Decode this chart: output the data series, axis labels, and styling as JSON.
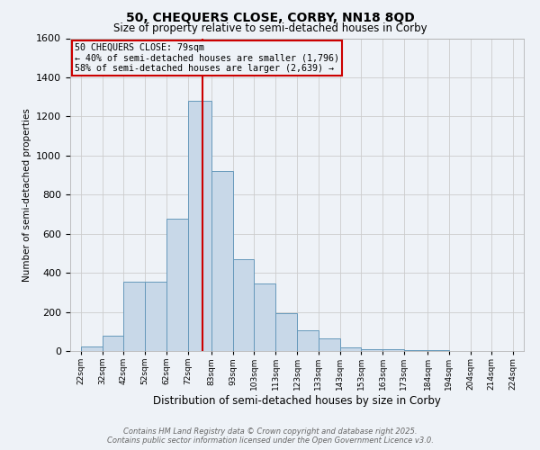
{
  "title_line1": "50, CHEQUERS CLOSE, CORBY, NN18 8QD",
  "title_line2": "Size of property relative to semi-detached houses in Corby",
  "xlabel": "Distribution of semi-detached houses by size in Corby",
  "ylabel": "Number of semi-detached properties",
  "bin_labels": [
    "22sqm",
    "32sqm",
    "42sqm",
    "52sqm",
    "62sqm",
    "72sqm",
    "83sqm",
    "93sqm",
    "103sqm",
    "113sqm",
    "123sqm",
    "133sqm",
    "143sqm",
    "153sqm",
    "163sqm",
    "173sqm",
    "184sqm",
    "194sqm",
    "204sqm",
    "214sqm",
    "224sqm"
  ],
  "bar_centers": [
    27,
    37,
    47,
    57,
    67,
    77.5,
    88,
    98,
    108,
    118,
    128,
    138,
    148,
    158,
    168,
    178.5,
    189,
    199,
    209,
    219
  ],
  "bar_widths": [
    10,
    10,
    10,
    10,
    10,
    11,
    10,
    10,
    10,
    10,
    10,
    10,
    10,
    10,
    10,
    11,
    10,
    10,
    10,
    10
  ],
  "bar_heights": [
    25,
    80,
    355,
    355,
    675,
    1280,
    920,
    470,
    345,
    195,
    105,
    65,
    20,
    10,
    10,
    5,
    3,
    0,
    0,
    0
  ],
  "bar_color": "#c8d8e8",
  "bar_edge_color": "#6699bb",
  "property_size": 79,
  "red_line_color": "#cc0000",
  "annotation_text": "50 CHEQUERS CLOSE: 79sqm\n← 40% of semi-detached houses are smaller (1,796)\n58% of semi-detached houses are larger (2,639) →",
  "annotation_box_color": "#cc0000",
  "ylim": [
    0,
    1600
  ],
  "xlim": [
    17,
    229
  ],
  "yticks": [
    0,
    200,
    400,
    600,
    800,
    1000,
    1200,
    1400,
    1600
  ],
  "grid_color": "#cccccc",
  "footer_text": "Contains HM Land Registry data © Crown copyright and database right 2025.\nContains public sector information licensed under the Open Government Licence v3.0.",
  "bg_color": "#eef2f7"
}
